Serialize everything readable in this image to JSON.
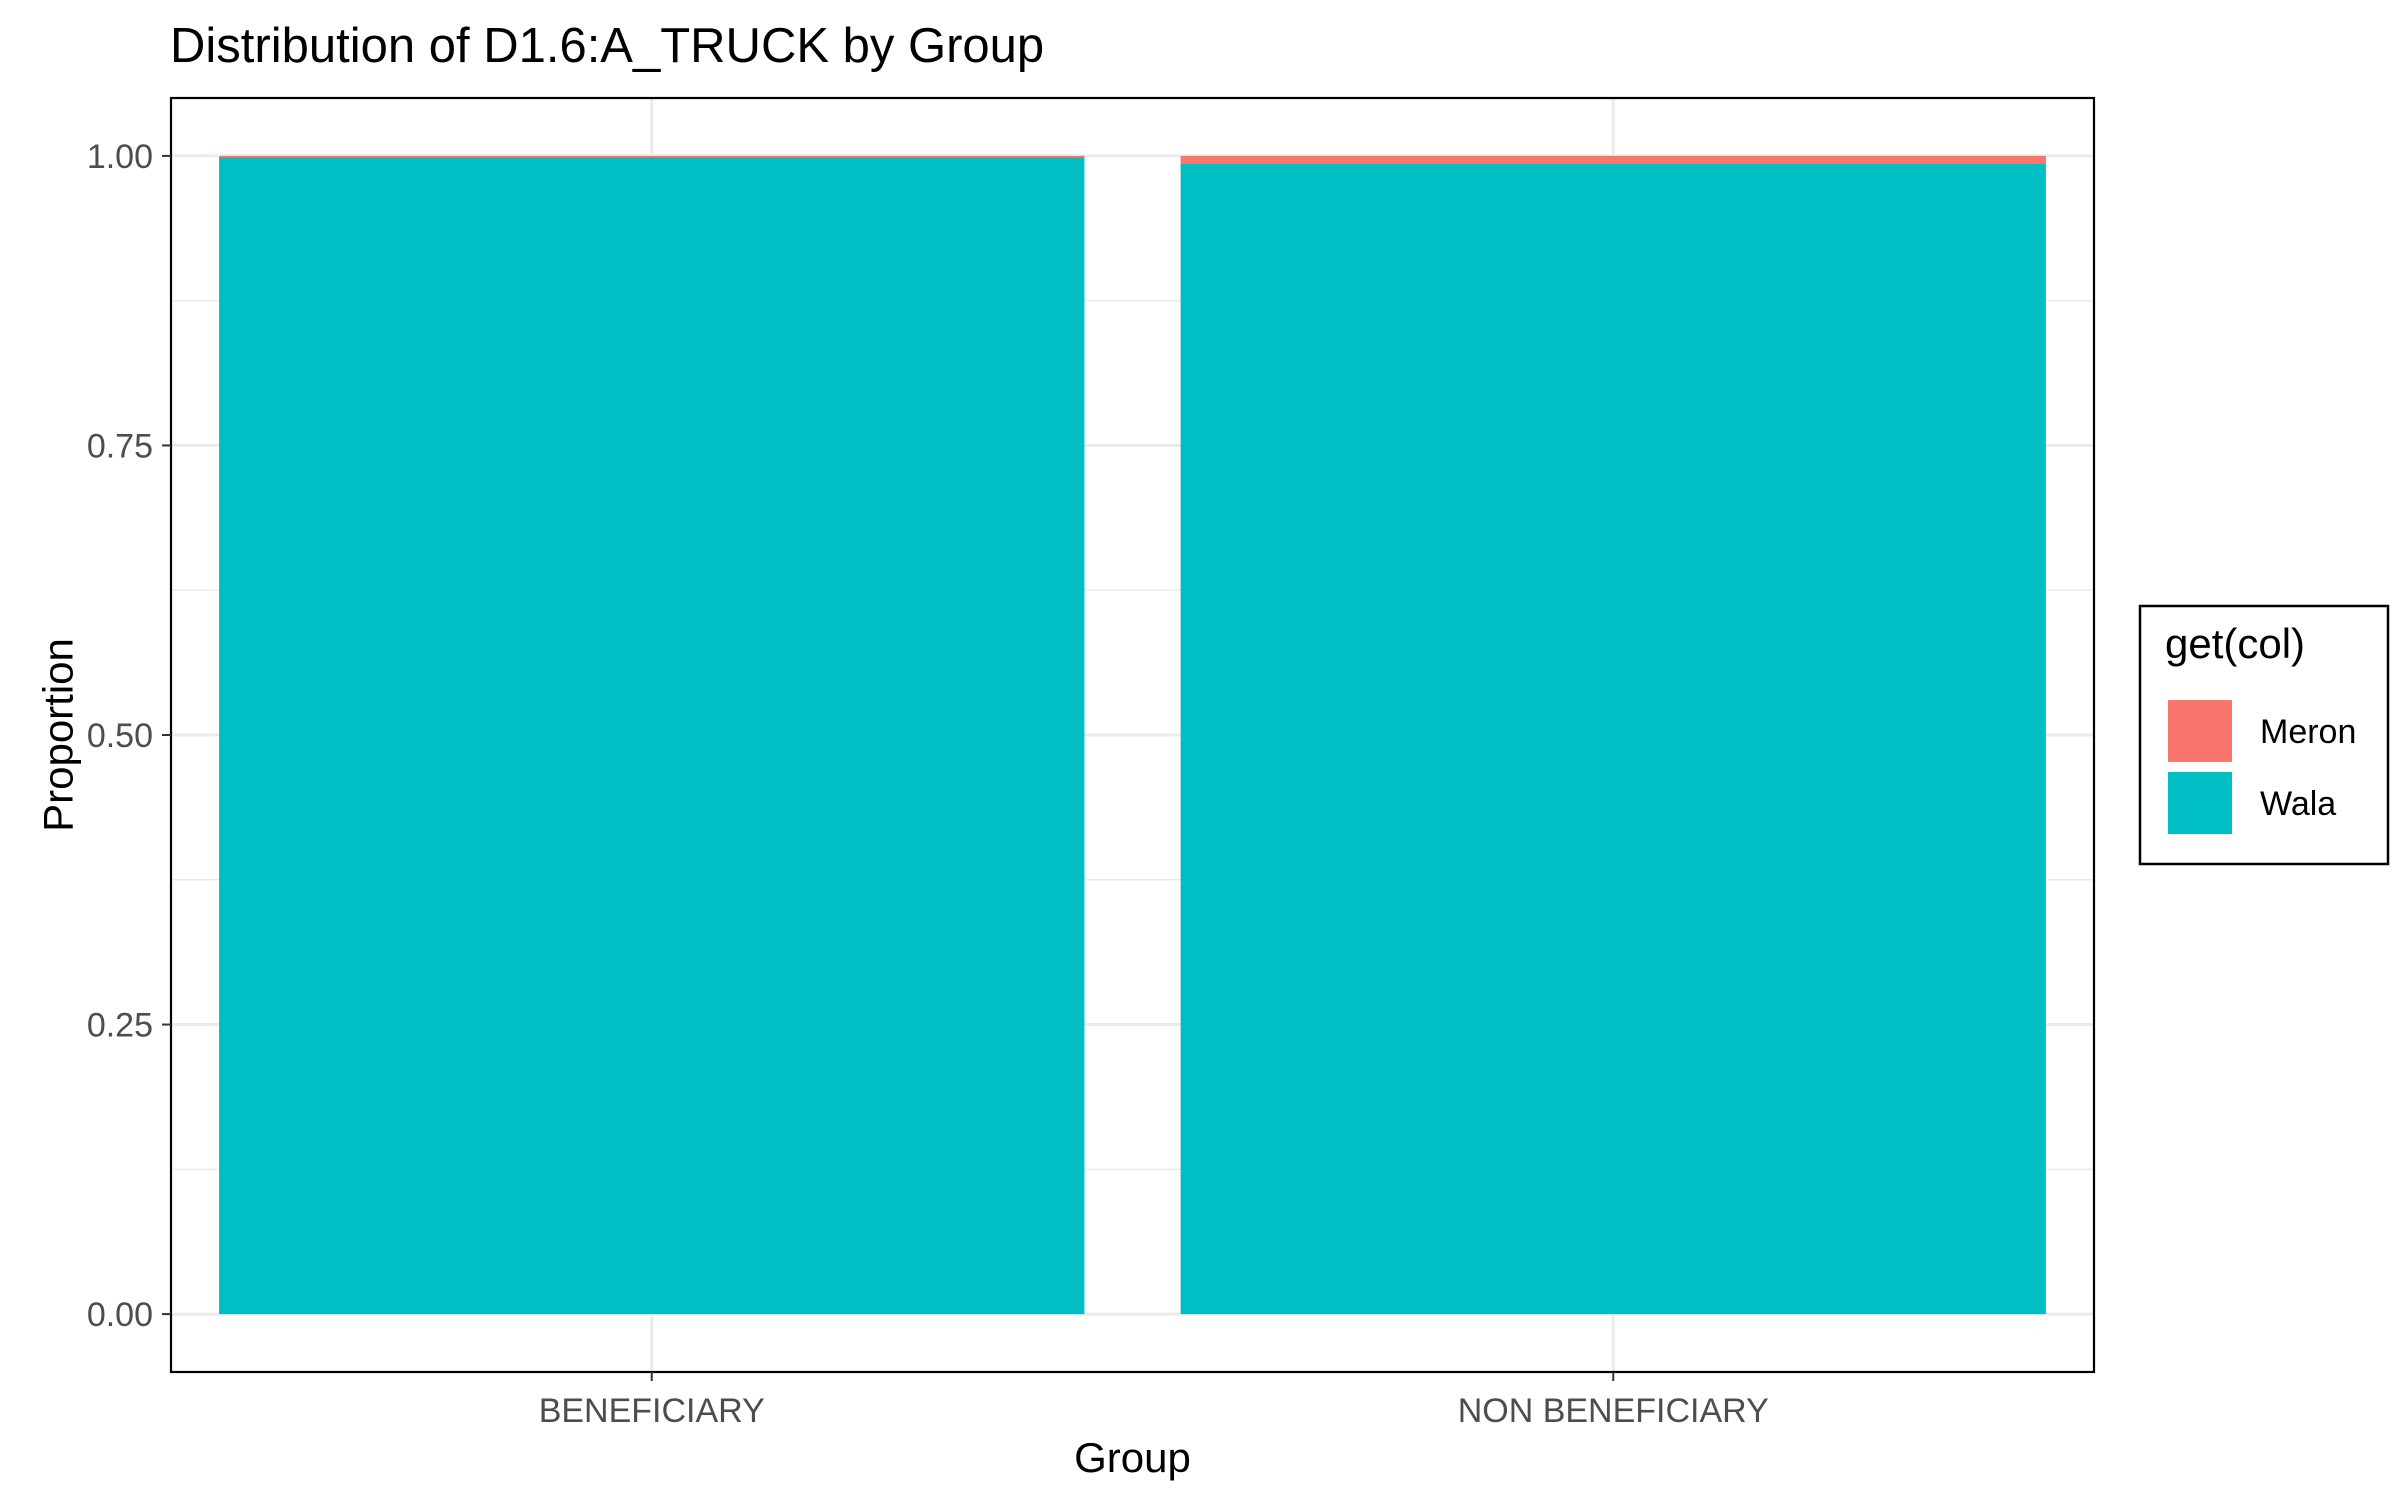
{
  "chart_data": {
    "type": "bar",
    "stacked": true,
    "title": "Distribution of D1.6:A_TRUCK by Group",
    "xlabel": "Group",
    "ylabel": "Proportion",
    "categories": [
      "BENEFICIARY",
      "NON BENEFICIARY"
    ],
    "series": [
      {
        "name": "Wala",
        "values": [
          0.999,
          0.993
        ],
        "color": "#00BFC4"
      },
      {
        "name": "Meron",
        "values": [
          0.001,
          0.007
        ],
        "color": "#F8766D"
      }
    ],
    "ylim": [
      -0.05,
      1.05
    ],
    "yticks": [
      0.0,
      0.25,
      0.5,
      0.75,
      1.0
    ],
    "ytick_labels": [
      "0.00",
      "0.25",
      "0.50",
      "0.75",
      "1.00"
    ],
    "grid": true,
    "legend": {
      "title": "get(col)",
      "position": "right",
      "items": [
        {
          "label": "Meron",
          "color": "#F8766D"
        },
        {
          "label": "Wala",
          "color": "#00BFC4"
        }
      ]
    }
  }
}
